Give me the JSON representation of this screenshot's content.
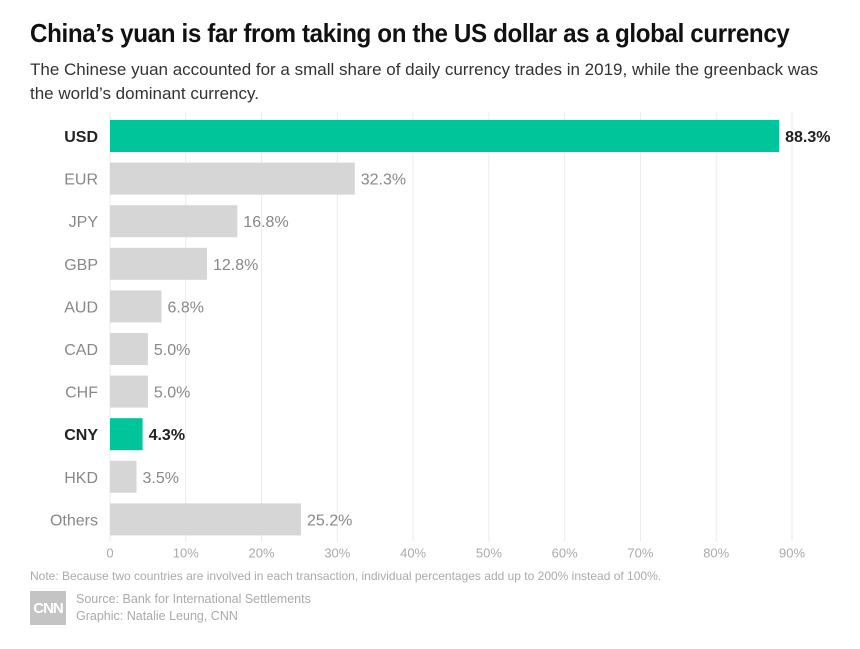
{
  "title": "China’s yuan is far from taking on the US dollar as a global currency",
  "subtitle": "The Chinese yuan accounted for a small share of daily currency trades in 2019, while the greenback was the world’s dominant currency.",
  "note": "Note: Because two countries are involved in each transaction, individual percentages add up to 200% instead of 100%.",
  "source": "Source: Bank for International Settlements",
  "graphic": "Graphic: Natalie Leung, CNN",
  "logo_text": "CNN",
  "colors": {
    "highlight": "#00c49a",
    "default": "#d6d6d6",
    "grid": "#ebebeb"
  },
  "chart_data": {
    "type": "bar",
    "orientation": "horizontal",
    "categories": [
      "USD",
      "EUR",
      "JPY",
      "GBP",
      "AUD",
      "CAD",
      "CHF",
      "CNY",
      "HKD",
      "Others"
    ],
    "values": [
      88.3,
      32.3,
      16.8,
      12.8,
      6.8,
      5.0,
      5.0,
      4.3,
      3.5,
      25.2
    ],
    "value_labels": [
      "88.3%",
      "32.3%",
      "16.8%",
      "12.8%",
      "6.8%",
      "5.0%",
      "5.0%",
      "4.3%",
      "3.5%",
      "25.2%"
    ],
    "highlighted": [
      "USD",
      "CNY"
    ],
    "xlim": [
      0,
      90
    ],
    "xticks": [
      0,
      10,
      20,
      30,
      40,
      50,
      60,
      70,
      80,
      90
    ],
    "xtick_labels": [
      "0",
      "10%",
      "20%",
      "30%",
      "40%",
      "50%",
      "60%",
      "70%",
      "80%",
      "90%"
    ],
    "grid": true
  }
}
